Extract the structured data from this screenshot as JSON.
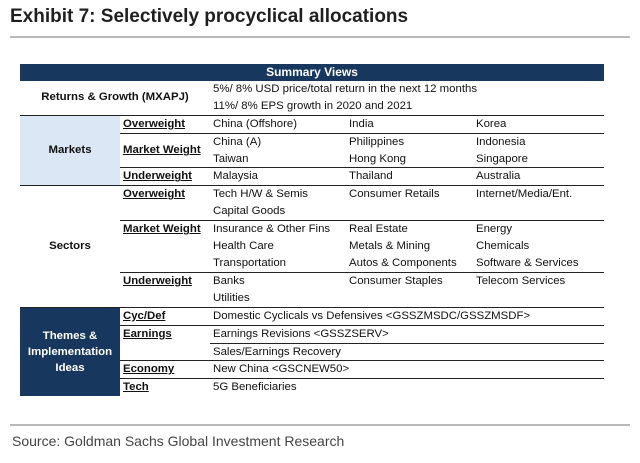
{
  "title": "Exhibit 7: Selectively procyclical allocations",
  "source": "Source: Goldman Sachs Global Investment Research",
  "table": {
    "header": "Summary Views",
    "returns": {
      "label": "Returns & Growth (MXAPJ)",
      "lines": [
        "5%/ 8% USD price/total return in the next 12 months",
        "11%/ 8% EPS growth in 2020 and 2021"
      ]
    },
    "markets": {
      "label": "Markets",
      "overweight": {
        "label": "Overweight",
        "items": [
          "China (Offshore)",
          "India",
          "Korea"
        ]
      },
      "market_weight": {
        "label": "Market Weight",
        "rows": [
          [
            "China (A)",
            "Philippines",
            "Indonesia"
          ],
          [
            "Taiwan",
            "Hong Kong",
            "Singapore"
          ]
        ]
      },
      "underweight": {
        "label": "Underweight",
        "items": [
          "Malaysia",
          "Thailand",
          "Australia"
        ]
      }
    },
    "sectors": {
      "label": "Sectors",
      "overweight": {
        "label": "Overweight",
        "rows": [
          [
            "Tech H/W & Semis",
            "Consumer Retails",
            "Internet/Media/Ent."
          ],
          [
            "Capital Goods",
            "",
            ""
          ]
        ]
      },
      "market_weight": {
        "label": "Market Weight",
        "rows": [
          [
            "Insurance & Other Fins",
            "Real Estate",
            "Energy"
          ],
          [
            "Health Care",
            "Metals & Mining",
            "Chemicals"
          ],
          [
            "Transportation",
            "Autos & Components",
            "Software & Services"
          ]
        ]
      },
      "underweight": {
        "label": "Underweight",
        "rows": [
          [
            "Banks",
            "Consumer Staples",
            "Telecom Services"
          ],
          [
            "Utilities",
            "",
            ""
          ]
        ]
      }
    },
    "themes": {
      "label_lines": [
        "Themes &",
        "Implementation",
        "Ideas"
      ],
      "rows": [
        {
          "category": "Cyc/Def",
          "text": "Domestic Cyclicals vs Defensives <GSSZMSDC/GSSZMSDF>"
        },
        {
          "category": "Earnings",
          "text": "Earnings Revisions <GSSZSERV>"
        },
        {
          "category": "",
          "text": "Sales/Earnings Recovery"
        },
        {
          "category": "Economy",
          "text": "New China <GSCNEW50>"
        },
        {
          "category": "Tech",
          "text": "5G Beneficiaries"
        }
      ]
    }
  }
}
